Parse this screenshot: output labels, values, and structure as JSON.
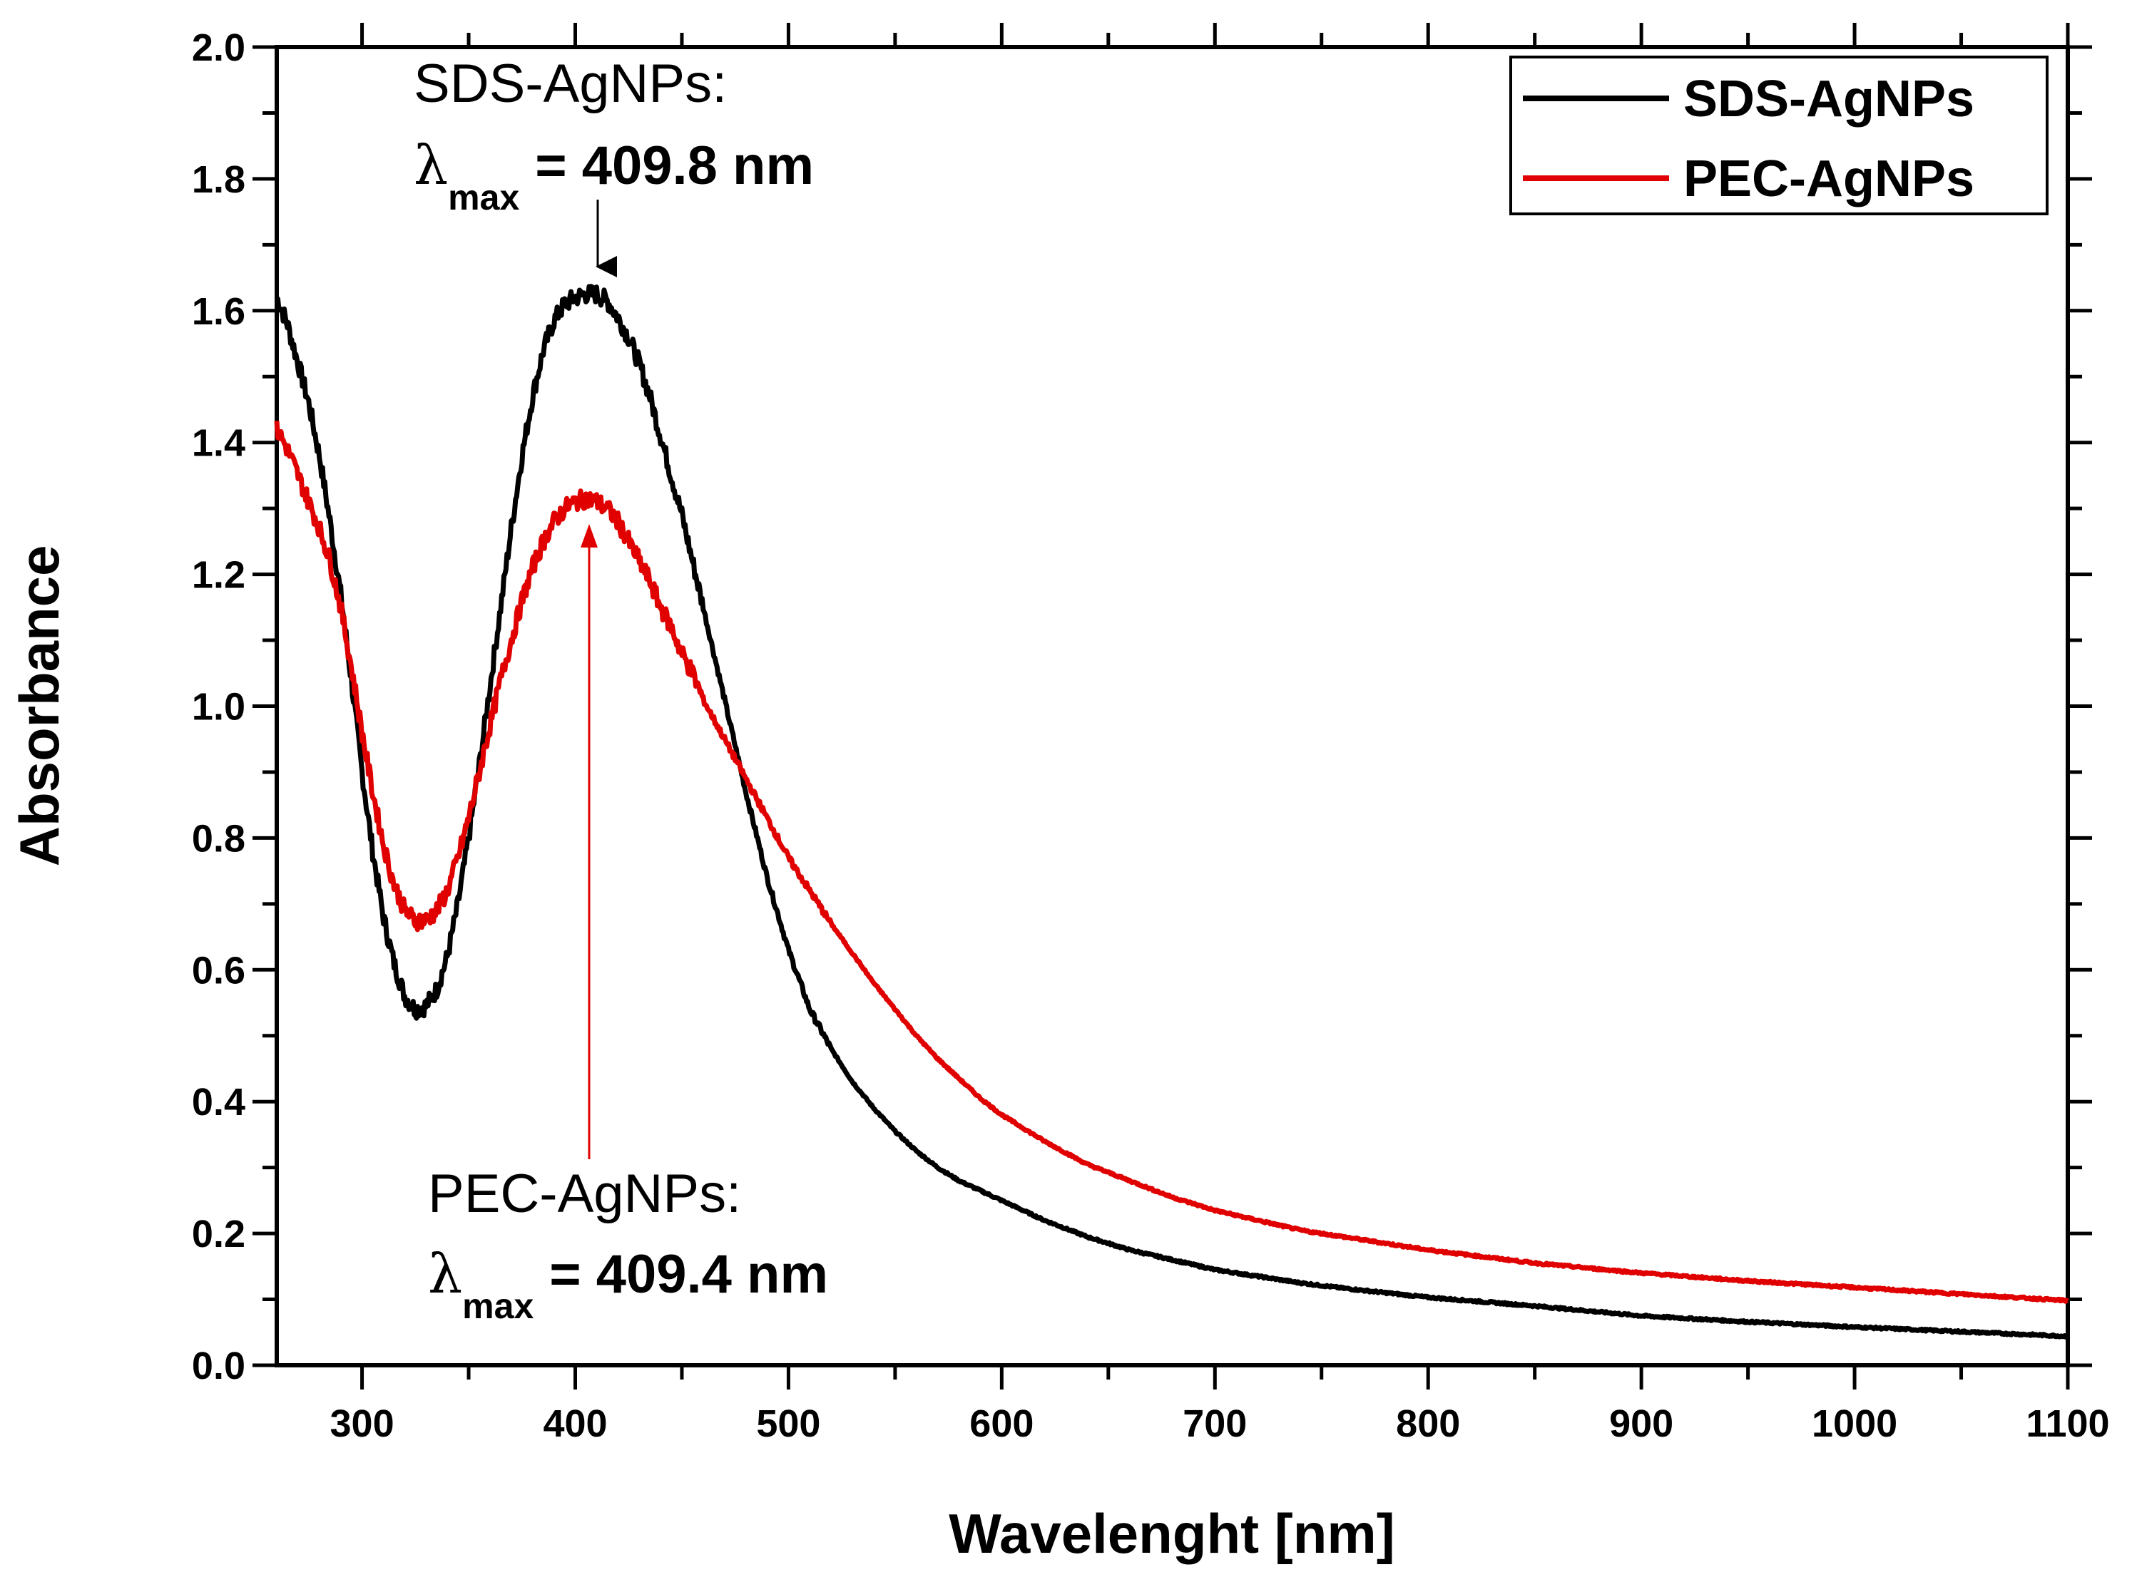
{
  "chart_data": {
    "type": "line",
    "title": "",
    "xlabel": "Wavelenght [nm]",
    "ylabel": "Absorbance",
    "xlim": [
      260,
      1100
    ],
    "ylim": [
      0.0,
      2.0
    ],
    "x_ticks": [
      "300",
      "400",
      "500",
      "600",
      "700",
      "800",
      "900",
      "1000",
      "1100"
    ],
    "y_ticks": [
      "0.0",
      "0.2",
      "0.4",
      "0.6",
      "0.8",
      "1.0",
      "1.2",
      "1.4",
      "1.6",
      "1.8",
      "2.0"
    ],
    "grid": false,
    "legend_position": "top-right",
    "series": [
      {
        "name": "SDS-AgNPs",
        "color": "#000000",
        "x": [
          260,
          265,
          270,
          275,
          280,
          285,
          290,
          295,
          300,
          305,
          310,
          315,
          320,
          325,
          330,
          335,
          340,
          345,
          350,
          355,
          360,
          365,
          370,
          375,
          380,
          385,
          390,
          395,
          400,
          405,
          410,
          415,
          420,
          425,
          430,
          435,
          440,
          445,
          450,
          455,
          460,
          465,
          470,
          475,
          480,
          490,
          500,
          510,
          520,
          530,
          540,
          550,
          560,
          570,
          580,
          590,
          600,
          620,
          640,
          660,
          680,
          700,
          720,
          740,
          760,
          780,
          800,
          850,
          900,
          950,
          1000,
          1050,
          1100
        ],
        "y": [
          1.62,
          1.58,
          1.52,
          1.46,
          1.38,
          1.28,
          1.17,
          1.04,
          0.9,
          0.78,
          0.68,
          0.61,
          0.56,
          0.54,
          0.545,
          0.57,
          0.62,
          0.7,
          0.8,
          0.91,
          1.03,
          1.15,
          1.27,
          1.38,
          1.47,
          1.54,
          1.585,
          1.61,
          1.62,
          1.625,
          1.625,
          1.615,
          1.59,
          1.56,
          1.52,
          1.47,
          1.41,
          1.35,
          1.29,
          1.22,
          1.15,
          1.08,
          1.01,
          0.94,
          0.87,
          0.74,
          0.63,
          0.54,
          0.48,
          0.43,
          0.39,
          0.355,
          0.325,
          0.3,
          0.28,
          0.265,
          0.25,
          0.22,
          0.195,
          0.175,
          0.16,
          0.145,
          0.135,
          0.125,
          0.117,
          0.11,
          0.103,
          0.09,
          0.075,
          0.066,
          0.058,
          0.051,
          0.044
        ]
      },
      {
        "name": "PEC-AgNPs",
        "color": "#e00000",
        "x": [
          260,
          265,
          270,
          275,
          280,
          285,
          290,
          295,
          300,
          305,
          310,
          315,
          320,
          325,
          330,
          335,
          340,
          345,
          350,
          355,
          360,
          365,
          370,
          375,
          380,
          385,
          390,
          395,
          400,
          405,
          410,
          415,
          420,
          425,
          430,
          435,
          440,
          445,
          450,
          455,
          460,
          465,
          470,
          475,
          480,
          490,
          500,
          510,
          520,
          530,
          540,
          550,
          560,
          570,
          580,
          590,
          600,
          620,
          640,
          660,
          680,
          700,
          720,
          740,
          760,
          780,
          800,
          850,
          900,
          950,
          1000,
          1050,
          1100
        ],
        "y": [
          1.42,
          1.39,
          1.35,
          1.31,
          1.27,
          1.22,
          1.15,
          1.06,
          0.96,
          0.87,
          0.79,
          0.73,
          0.69,
          0.675,
          0.675,
          0.69,
          0.72,
          0.77,
          0.83,
          0.9,
          0.97,
          1.04,
          1.1,
          1.16,
          1.21,
          1.25,
          1.28,
          1.3,
          1.31,
          1.315,
          1.31,
          1.3,
          1.28,
          1.25,
          1.22,
          1.19,
          1.15,
          1.12,
          1.08,
          1.05,
          1.01,
          0.98,
          0.95,
          0.92,
          0.89,
          0.83,
          0.77,
          0.72,
          0.67,
          0.625,
          0.58,
          0.54,
          0.5,
          0.465,
          0.435,
          0.405,
          0.38,
          0.34,
          0.305,
          0.28,
          0.255,
          0.235,
          0.22,
          0.205,
          0.195,
          0.185,
          0.175,
          0.155,
          0.14,
          0.128,
          0.118,
          0.108,
          0.098
        ]
      }
    ],
    "annotations": [
      {
        "name": "SDS-AgNPs:",
        "symbol": "λ",
        "subscript": "max",
        "value": "= 409.8 nm",
        "text_position": "top",
        "arrow_to_x": 409.8,
        "arrow_to_y": 1.62,
        "arrow_color": "#000000"
      },
      {
        "name": "PEC-AgNPs:",
        "symbol": "λ",
        "subscript": "max",
        "value": "= 409.4 nm",
        "text_position": "bottom",
        "arrow_to_x": 409.4,
        "arrow_to_y": 1.3,
        "arrow_color": "#e00000"
      }
    ]
  }
}
